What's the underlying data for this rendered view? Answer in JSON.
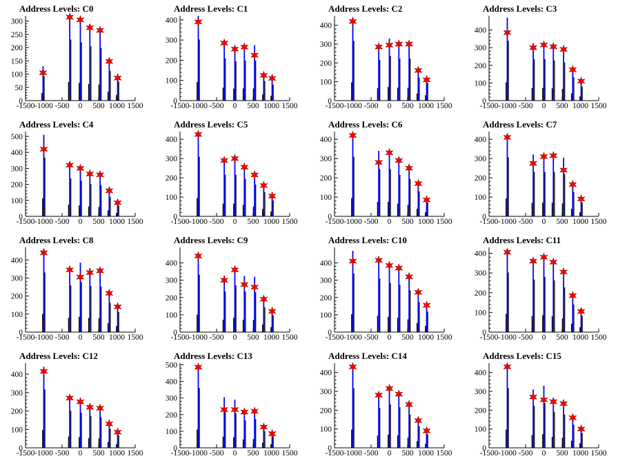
{
  "chart_data": [
    {
      "type": "bar",
      "title": "Address Levels: C0",
      "xlim": [
        -1500,
        1500
      ],
      "ylim": [
        0,
        320
      ],
      "yticks": [
        0,
        50,
        100,
        150,
        200,
        250,
        300
      ],
      "xtick_labels": [
        "-1500",
        "-1000",
        "-500",
        "0",
        "500",
        "1000",
        "1500"
      ],
      "peaks": [
        {
          "x": -1020,
          "y": 130,
          "star": 105
        },
        {
          "x": -290,
          "y": 320,
          "star": 315
        },
        {
          "x": 0,
          "y": 305,
          "star": 305
        },
        {
          "x": 260,
          "y": 285,
          "star": 275
        },
        {
          "x": 540,
          "y": 275,
          "star": 265
        },
        {
          "x": 790,
          "y": 155,
          "star": 148
        },
        {
          "x": 1020,
          "y": 100,
          "star": 85
        }
      ]
    },
    {
      "type": "bar",
      "title": "Address Levels: C1",
      "xlim": [
        -1500,
        1500
      ],
      "ylim": [
        0,
        420
      ],
      "yticks": [
        0,
        100,
        200,
        300,
        400
      ],
      "xtick_labels": [
        "-1500",
        "-1000",
        "-500",
        "0",
        "500",
        "1000",
        "1500"
      ],
      "peaks": [
        {
          "x": -1000,
          "y": 420,
          "star": 390
        },
        {
          "x": -290,
          "y": 290,
          "star": 285
        },
        {
          "x": 0,
          "y": 270,
          "star": 255
        },
        {
          "x": 260,
          "y": 275,
          "star": 265
        },
        {
          "x": 540,
          "y": 275,
          "star": 225
        },
        {
          "x": 790,
          "y": 135,
          "star": 125
        },
        {
          "x": 1020,
          "y": 110,
          "star": 110
        }
      ]
    },
    {
      "type": "bar",
      "title": "Address Levels: C2",
      "xlim": [
        -1500,
        1500
      ],
      "ylim": [
        0,
        450
      ],
      "yticks": [
        0,
        100,
        200,
        300,
        400
      ],
      "xtick_labels": [
        "-1500",
        "-1000",
        "-500",
        "0",
        "500",
        "1000",
        "1500"
      ],
      "peaks": [
        {
          "x": -1000,
          "y": 440,
          "star": 420
        },
        {
          "x": -290,
          "y": 300,
          "star": 285
        },
        {
          "x": 0,
          "y": 330,
          "star": 295
        },
        {
          "x": 260,
          "y": 310,
          "star": 300
        },
        {
          "x": 540,
          "y": 310,
          "star": 300
        },
        {
          "x": 790,
          "y": 170,
          "star": 160
        },
        {
          "x": 1020,
          "y": 130,
          "star": 110
        }
      ]
    },
    {
      "type": "bar",
      "title": "Address Levels: C3",
      "xlim": [
        -1500,
        1500
      ],
      "ylim": [
        0,
        480
      ],
      "yticks": [
        0,
        100,
        200,
        300,
        400
      ],
      "xtick_labels": [
        "-1500",
        "-1000",
        "-500",
        "0",
        "500",
        "1000",
        "1500"
      ],
      "peaks": [
        {
          "x": -1000,
          "y": 470,
          "star": 385
        },
        {
          "x": -290,
          "y": 325,
          "star": 300
        },
        {
          "x": 0,
          "y": 325,
          "star": 315
        },
        {
          "x": 260,
          "y": 315,
          "star": 305
        },
        {
          "x": 540,
          "y": 300,
          "star": 290
        },
        {
          "x": 790,
          "y": 185,
          "star": 175
        },
        {
          "x": 1020,
          "y": 110,
          "star": 110
        }
      ]
    },
    {
      "type": "bar",
      "title": "Address Levels: C4",
      "xlim": [
        -1500,
        1500
      ],
      "ylim": [
        0,
        530
      ],
      "yticks": [
        0,
        100,
        200,
        300,
        400,
        500
      ],
      "xtick_labels": [
        "-1500",
        "-1000",
        "-500",
        "0",
        "500",
        "1000",
        "1500"
      ],
      "peaks": [
        {
          "x": -1000,
          "y": 510,
          "star": 420
        },
        {
          "x": -290,
          "y": 330,
          "star": 320
        },
        {
          "x": 0,
          "y": 310,
          "star": 300
        },
        {
          "x": 260,
          "y": 280,
          "star": 265
        },
        {
          "x": 540,
          "y": 270,
          "star": 260
        },
        {
          "x": 790,
          "y": 170,
          "star": 160
        },
        {
          "x": 1020,
          "y": 95,
          "star": 85
        }
      ]
    },
    {
      "type": "bar",
      "title": "Address Levels: C5",
      "xlim": [
        -1500,
        1500
      ],
      "ylim": [
        0,
        440
      ],
      "yticks": [
        0,
        100,
        200,
        300,
        400
      ],
      "xtick_labels": [
        "-1500",
        "-1000",
        "-500",
        "0",
        "500",
        "1000",
        "1500"
      ],
      "peaks": [
        {
          "x": -1000,
          "y": 430,
          "star": 425
        },
        {
          "x": -290,
          "y": 300,
          "star": 290
        },
        {
          "x": 0,
          "y": 300,
          "star": 300
        },
        {
          "x": 260,
          "y": 270,
          "star": 255
        },
        {
          "x": 540,
          "y": 230,
          "star": 215
        },
        {
          "x": 790,
          "y": 175,
          "star": 160
        },
        {
          "x": 1020,
          "y": 115,
          "star": 105
        }
      ]
    },
    {
      "type": "bar",
      "title": "Address Levels: C6",
      "xlim": [
        -1500,
        1500
      ],
      "ylim": [
        0,
        440
      ],
      "yticks": [
        0,
        100,
        200,
        300,
        400
      ],
      "xtick_labels": [
        "-1500",
        "-1000",
        "-500",
        "0",
        "500",
        "1000",
        "1500"
      ],
      "peaks": [
        {
          "x": -1000,
          "y": 430,
          "star": 420
        },
        {
          "x": -290,
          "y": 340,
          "star": 280
        },
        {
          "x": 0,
          "y": 340,
          "star": 330
        },
        {
          "x": 260,
          "y": 300,
          "star": 290
        },
        {
          "x": 540,
          "y": 270,
          "star": 250
        },
        {
          "x": 790,
          "y": 180,
          "star": 170
        },
        {
          "x": 1020,
          "y": 100,
          "star": 85
        }
      ]
    },
    {
      "type": "bar",
      "title": "Address Levels: C7",
      "xlim": [
        -1500,
        1500
      ],
      "ylim": [
        0,
        440
      ],
      "yticks": [
        0,
        100,
        200,
        300,
        400
      ],
      "xtick_labels": [
        "-1500",
        "-1000",
        "-500",
        "0",
        "500",
        "1000",
        "1500"
      ],
      "peaks": [
        {
          "x": -1000,
          "y": 425,
          "star": 410
        },
        {
          "x": -290,
          "y": 320,
          "star": 275
        },
        {
          "x": 0,
          "y": 320,
          "star": 310
        },
        {
          "x": 260,
          "y": 320,
          "star": 315
        },
        {
          "x": 540,
          "y": 305,
          "star": 240
        },
        {
          "x": 790,
          "y": 175,
          "star": 165
        },
        {
          "x": 1020,
          "y": 100,
          "star": 90
        }
      ]
    },
    {
      "type": "bar",
      "title": "Address Levels: C8",
      "xlim": [
        -1500,
        1500
      ],
      "ylim": [
        0,
        470
      ],
      "yticks": [
        0,
        100,
        200,
        300,
        400
      ],
      "xtick_labels": [
        "-1500",
        "-1000",
        "-500",
        "0",
        "500",
        "1000",
        "1500"
      ],
      "peaks": [
        {
          "x": -1000,
          "y": 460,
          "star": 440
        },
        {
          "x": -290,
          "y": 360,
          "star": 345
        },
        {
          "x": 0,
          "y": 385,
          "star": 305
        },
        {
          "x": 260,
          "y": 355,
          "star": 330
        },
        {
          "x": 540,
          "y": 350,
          "star": 340
        },
        {
          "x": 790,
          "y": 225,
          "star": 215
        },
        {
          "x": 1020,
          "y": 155,
          "star": 140
        }
      ]
    },
    {
      "type": "bar",
      "title": "Address Levels: C9",
      "xlim": [
        -1500,
        1500
      ],
      "ylim": [
        0,
        490
      ],
      "yticks": [
        0,
        100,
        200,
        300,
        400
      ],
      "xtick_labels": [
        "-1500",
        "-1000",
        "-500",
        "0",
        "500",
        "1000",
        "1500"
      ],
      "peaks": [
        {
          "x": -1000,
          "y": 460,
          "star": 440
        },
        {
          "x": -290,
          "y": 325,
          "star": 300
        },
        {
          "x": 0,
          "y": 375,
          "star": 360
        },
        {
          "x": 260,
          "y": 325,
          "star": 275
        },
        {
          "x": 540,
          "y": 320,
          "star": 260
        },
        {
          "x": 790,
          "y": 200,
          "star": 190
        },
        {
          "x": 1020,
          "y": 135,
          "star": 120
        }
      ]
    },
    {
      "type": "bar",
      "title": "Address Levels: C10",
      "xlim": [
        -1500,
        1500
      ],
      "ylim": [
        0,
        490
      ],
      "yticks": [
        0,
        100,
        200,
        300,
        400
      ],
      "xtick_labels": [
        "-1500",
        "-1000",
        "-500",
        "0",
        "500",
        "1000",
        "1500"
      ],
      "peaks": [
        {
          "x": -1000,
          "y": 470,
          "star": 410
        },
        {
          "x": -290,
          "y": 430,
          "star": 415
        },
        {
          "x": 0,
          "y": 395,
          "star": 385
        },
        {
          "x": 260,
          "y": 380,
          "star": 370
        },
        {
          "x": 540,
          "y": 335,
          "star": 320
        },
        {
          "x": 790,
          "y": 240,
          "star": 230
        },
        {
          "x": 1020,
          "y": 165,
          "star": 155
        }
      ]
    },
    {
      "type": "bar",
      "title": "Address Levels: C11",
      "xlim": [
        -1500,
        1500
      ],
      "ylim": [
        0,
        430
      ],
      "yticks": [
        0,
        100,
        200,
        300,
        400
      ],
      "xtick_labels": [
        "-1500",
        "-1000",
        "-500",
        "0",
        "500",
        "1000",
        "1500"
      ],
      "peaks": [
        {
          "x": -1000,
          "y": 420,
          "star": 405
        },
        {
          "x": -290,
          "y": 370,
          "star": 360
        },
        {
          "x": 0,
          "y": 390,
          "star": 380
        },
        {
          "x": 260,
          "y": 365,
          "star": 355
        },
        {
          "x": 540,
          "y": 315,
          "star": 305
        },
        {
          "x": 790,
          "y": 195,
          "star": 185
        },
        {
          "x": 1020,
          "y": 115,
          "star": 105
        }
      ]
    },
    {
      "type": "bar",
      "title": "Address Levels: C12",
      "xlim": [
        -1500,
        1500
      ],
      "ylim": [
        0,
        460
      ],
      "yticks": [
        0,
        100,
        200,
        300,
        400
      ],
      "xtick_labels": [
        "-1500",
        "-1000",
        "-500",
        "0",
        "500",
        "1000",
        "1500"
      ],
      "peaks": [
        {
          "x": -1000,
          "y": 440,
          "star": 415
        },
        {
          "x": -290,
          "y": 280,
          "star": 270
        },
        {
          "x": 0,
          "y": 265,
          "star": 250
        },
        {
          "x": 260,
          "y": 240,
          "star": 220
        },
        {
          "x": 540,
          "y": 230,
          "star": 215
        },
        {
          "x": 790,
          "y": 145,
          "star": 130
        },
        {
          "x": 1020,
          "y": 95,
          "star": 85
        }
      ]
    },
    {
      "type": "bar",
      "title": "Address Levels: C13",
      "xlim": [
        -1500,
        1500
      ],
      "ylim": [
        0,
        510
      ],
      "yticks": [
        0,
        100,
        200,
        300,
        400,
        500
      ],
      "xtick_labels": [
        "-1500",
        "-1000",
        "-500",
        "0",
        "500",
        "1000",
        "1500"
      ],
      "peaks": [
        {
          "x": -1000,
          "y": 500,
          "star": 485
        },
        {
          "x": -290,
          "y": 305,
          "star": 230
        },
        {
          "x": 0,
          "y": 290,
          "star": 230
        },
        {
          "x": 260,
          "y": 230,
          "star": 215
        },
        {
          "x": 540,
          "y": 240,
          "star": 220
        },
        {
          "x": 790,
          "y": 140,
          "star": 125
        },
        {
          "x": 1020,
          "y": 100,
          "star": 85
        }
      ]
    },
    {
      "type": "bar",
      "title": "Address Levels: C14",
      "xlim": [
        -1500,
        1500
      ],
      "ylim": [
        0,
        450
      ],
      "yticks": [
        0,
        100,
        200,
        300,
        400
      ],
      "xtick_labels": [
        "-1500",
        "-1000",
        "-500",
        "0",
        "500",
        "1000",
        "1500"
      ],
      "peaks": [
        {
          "x": -1000,
          "y": 440,
          "star": 430
        },
        {
          "x": -290,
          "y": 295,
          "star": 280
        },
        {
          "x": 0,
          "y": 320,
          "star": 315
        },
        {
          "x": 260,
          "y": 300,
          "star": 285
        },
        {
          "x": 540,
          "y": 245,
          "star": 230
        },
        {
          "x": 790,
          "y": 160,
          "star": 145
        },
        {
          "x": 1020,
          "y": 100,
          "star": 90
        }
      ]
    },
    {
      "type": "bar",
      "title": "Address Levels: C15",
      "xlim": [
        -1500,
        1500
      ],
      "ylim": [
        0,
        450
      ],
      "yticks": [
        0,
        100,
        200,
        300,
        400
      ],
      "xtick_labels": [
        "-1500",
        "-1000",
        "-500",
        "0",
        "500",
        "1000",
        "1500"
      ],
      "peaks": [
        {
          "x": -1000,
          "y": 440,
          "star": 430
        },
        {
          "x": -290,
          "y": 310,
          "star": 270
        },
        {
          "x": 0,
          "y": 330,
          "star": 255
        },
        {
          "x": 260,
          "y": 265,
          "star": 245
        },
        {
          "x": 540,
          "y": 245,
          "star": 235
        },
        {
          "x": 790,
          "y": 170,
          "star": 160
        },
        {
          "x": 1020,
          "y": 110,
          "star": 100
        }
      ]
    }
  ],
  "colors": {
    "histogram": "#0000ff",
    "histogram_dark": "#000000",
    "marker_fill": "#ff0000",
    "marker_stroke": "#8b0000",
    "axis": "#000000"
  }
}
